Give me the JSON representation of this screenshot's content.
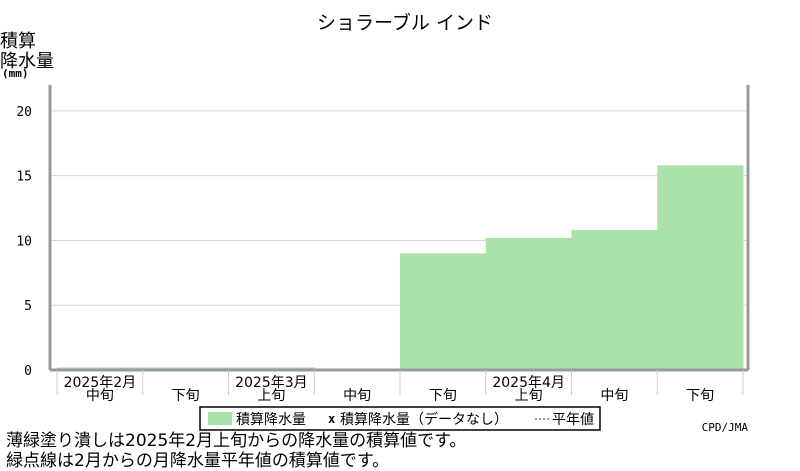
{
  "chart_data": {
    "type": "bar",
    "title": "ショラーブル インド",
    "ylabel": [
      "積算",
      "降水量",
      "(mm)"
    ],
    "ylim": [
      0,
      22
    ],
    "yticks": [
      0,
      5,
      10,
      15,
      20
    ],
    "grid": true,
    "periods": [
      {
        "label": "中旬",
        "group": "2025年2月"
      },
      {
        "label": "下旬",
        "group": "2025年2月"
      },
      {
        "label": "上旬",
        "group": "2025年3月"
      },
      {
        "label": "中旬",
        "group": "2025年3月"
      },
      {
        "label": "下旬",
        "group": "2025年3月"
      },
      {
        "label": "上旬",
        "group": "2025年4月"
      },
      {
        "label": "中旬",
        "group": "2025年4月"
      },
      {
        "label": "下旬",
        "group": "2025年4月"
      }
    ],
    "month_labels": [
      "2025年2月",
      "2025年3月",
      "2025年4月"
    ],
    "series": [
      {
        "name": "積算降水量",
        "color": "#aae2aa",
        "values": [
          0.2,
          0.2,
          0.2,
          0.0,
          9.0,
          10.2,
          10.8,
          15.8
        ]
      }
    ],
    "legend": {
      "position": "bottom-center",
      "items": [
        "積算降水量",
        "積算降水量（データなし）",
        "平年値"
      ]
    },
    "credit": "CPD/JMA"
  },
  "captions": [
    "薄緑塗り潰しは2025年2月上旬からの降水量の積算値です。",
    "緑点線は2月からの月降水量平年値の積算値です。"
  ]
}
